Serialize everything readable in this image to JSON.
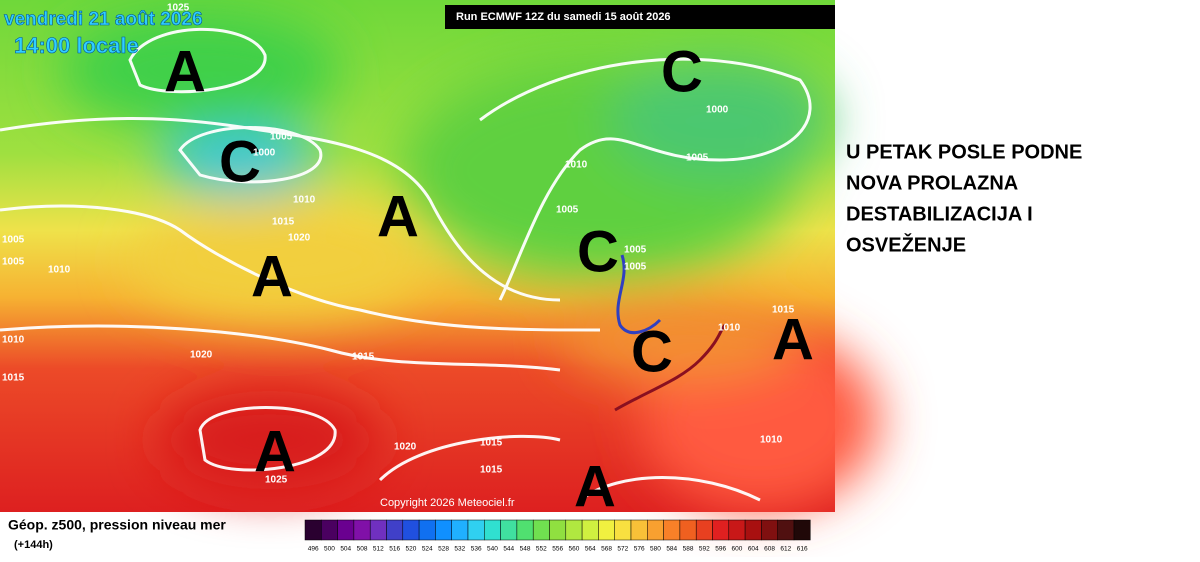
{
  "header": {
    "date": "vendredi 21 août 2026",
    "time": "14:00 locale",
    "run": "Run ECMWF 12Z du samedi 15 août 2026"
  },
  "map": {
    "pressure_centers": [
      "A",
      "C",
      "A",
      "A",
      "C",
      "C",
      "C",
      "A",
      "A",
      "A"
    ],
    "isobar_labels": [
      "1025",
      "1005",
      "1000",
      "1010",
      "1015",
      "1020",
      "1005",
      "1005",
      "1010",
      "1010",
      "1020",
      "1015",
      "1015",
      "1010",
      "1005",
      "1000",
      "1005",
      "1005",
      "1005",
      "1015",
      "1010",
      "1010",
      "1020",
      "1015",
      "1015",
      "1025"
    ],
    "copyright": "Copyright 2026 Meteociel.fr"
  },
  "legend": {
    "title": "Géop. z500, pression niveau mer",
    "subtitle": "(+144h)",
    "scale": [
      496,
      500,
      504,
      508,
      512,
      516,
      520,
      524,
      528,
      532,
      536,
      540,
      544,
      548,
      552,
      556,
      560,
      564,
      568,
      572,
      576,
      580,
      584,
      588,
      592,
      596,
      600,
      604,
      608,
      612,
      616
    ]
  },
  "caption": [
    "U PETAK POSLE PODNE",
    "NOVA PROLAZNA",
    "DESTABILIZACIJA I",
    "OSVEŽENJE"
  ]
}
